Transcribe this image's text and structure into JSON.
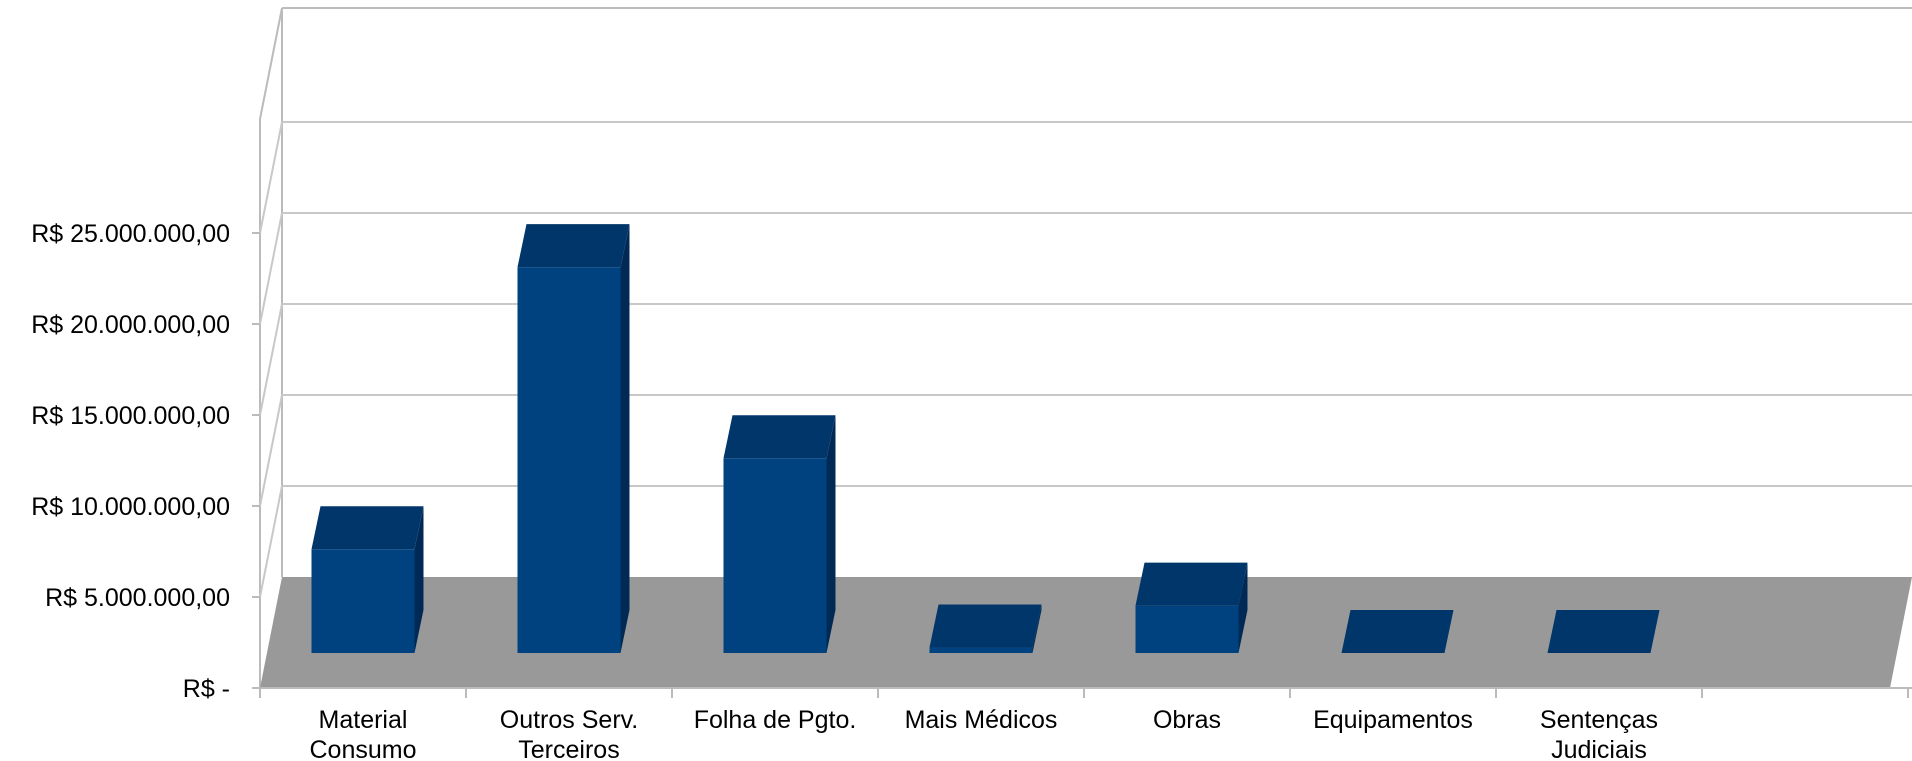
{
  "chart_data": {
    "type": "bar",
    "style": "3d-column",
    "categories": [
      [
        "Material",
        "Consumo"
      ],
      [
        "Outros Serv.",
        "Terceiros"
      ],
      [
        "Folha de Pgto."
      ],
      [
        "Mais Médicos"
      ],
      [
        "Obras"
      ],
      [
        "Equipamentos"
      ],
      [
        "Sentenças",
        "Judiciais"
      ]
    ],
    "values": [
      5700000,
      21200000,
      10700000,
      300000,
      2600000,
      0,
      0
    ],
    "ylim": [
      0,
      30000000
    ],
    "yticks": [
      0,
      5000000,
      10000000,
      15000000,
      20000000,
      25000000
    ],
    "ytick_labels": [
      "R$ -",
      "R$ 5.000.000,00",
      "R$ 10.000.000,00",
      "R$ 15.000.000,00",
      "R$ 20.000.000,00",
      "R$ 25.000.000,00"
    ],
    "grid": true,
    "legend": "none",
    "title": "",
    "xlabel": "",
    "ylabel": ""
  },
  "colors": {
    "bar_front": "#00427f",
    "bar_top": "#01366b",
    "bar_side": "#002a55",
    "floor": "#999999",
    "grid": "#c8c8c8",
    "axis": "#bbbbbb"
  }
}
